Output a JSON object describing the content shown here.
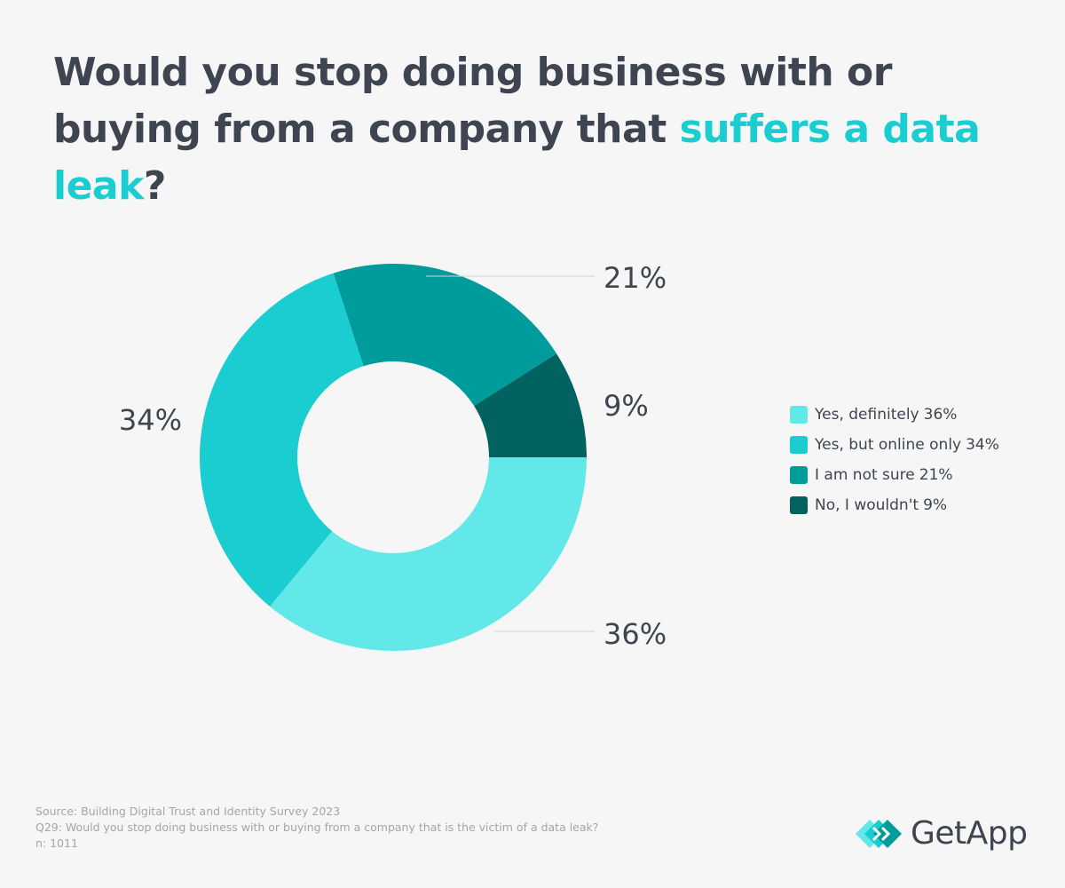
{
  "title": {
    "part1": "Would you stop doing business with or buying from a company that ",
    "highlight": "suffers a data leak",
    "part2": "?"
  },
  "colors": {
    "accent": "#19cdd0",
    "text": "#3e4550",
    "muted": "#a2a6ab",
    "leader": "#d4d4d4"
  },
  "chart_data": {
    "type": "pie",
    "style": "donut",
    "categories": [
      "Yes, definitely",
      "Yes, but online only",
      "I am not sure",
      "No, I wouldn't"
    ],
    "values": [
      36,
      34,
      21,
      9
    ],
    "unit": "%",
    "data_labels": [
      "36%",
      "34%",
      "21%",
      "9%"
    ],
    "colors": [
      "#62e8e9",
      "#19cdd0",
      "#009c9c",
      "#02625f"
    ],
    "legend_position": "right",
    "legend": [
      {
        "label": "Yes, definitely",
        "pct": "36%"
      },
      {
        "label": "Yes, but online only",
        "pct": "34%"
      },
      {
        "label": "I am not sure",
        "pct": "21%"
      },
      {
        "label": "No, I wouldn't",
        "pct": "9%"
      }
    ]
  },
  "footer": {
    "source": "Source: Building Digital Trust and Identity Survey 2023",
    "question": "Q29: Would you stop doing business with or buying from a company that is the victim of a data leak?",
    "n": "n: 1011"
  },
  "logo": {
    "text": "GetApp",
    "icon": "getapp-logo-icon"
  }
}
